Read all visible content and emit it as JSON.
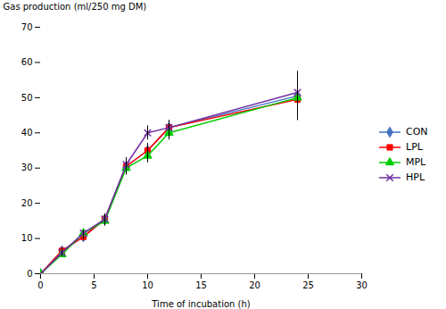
{
  "chart_data": {
    "type": "line",
    "xlabel": "Time of incubation (h)",
    "ylabel": "Gas production (ml/250 mg DM)",
    "x": [
      0,
      2,
      4,
      6,
      8,
      10,
      12,
      24
    ],
    "series": [
      {
        "name": "CON",
        "color": "#4472c4",
        "marker": "diamond",
        "values": [
          0,
          6.5,
          10.5,
          15.5,
          30.5,
          35.0,
          41.5,
          50.5
        ],
        "errors": [
          0,
          0.7,
          0.8,
          1.5,
          2.0,
          2.0,
          2.0,
          6.0
        ]
      },
      {
        "name": "LPL",
        "color": "#ff0000",
        "marker": "square",
        "values": [
          0,
          6.5,
          10.5,
          15.5,
          30.5,
          35.0,
          41.5,
          49.5
        ],
        "errors": [
          0,
          0.7,
          0.8,
          1.5,
          2.0,
          2.0,
          2.0,
          6.0
        ]
      },
      {
        "name": "MPL",
        "color": "#00cc00",
        "marker": "triangle",
        "values": [
          0,
          5.5,
          11.5,
          15.0,
          30.0,
          33.5,
          40.0,
          50.0
        ],
        "errors": [
          0,
          0.7,
          0.8,
          1.5,
          2.0,
          2.0,
          2.0,
          6.0
        ]
      },
      {
        "name": "HPL",
        "color": "#7030a0",
        "marker": "x",
        "values": [
          0,
          6.0,
          11.5,
          15.5,
          31.0,
          40.0,
          41.5,
          51.5
        ],
        "errors": [
          0,
          0.7,
          0.8,
          1.5,
          2.0,
          2.0,
          2.0,
          6.0
        ]
      }
    ],
    "xlim": [
      0,
      30
    ],
    "ylim": [
      0,
      70
    ],
    "xticks": [
      0,
      5,
      10,
      15,
      20,
      25,
      30
    ],
    "yticks": [
      0,
      10,
      20,
      30,
      40,
      50,
      60,
      70
    ],
    "grid": false,
    "legend": "right"
  }
}
